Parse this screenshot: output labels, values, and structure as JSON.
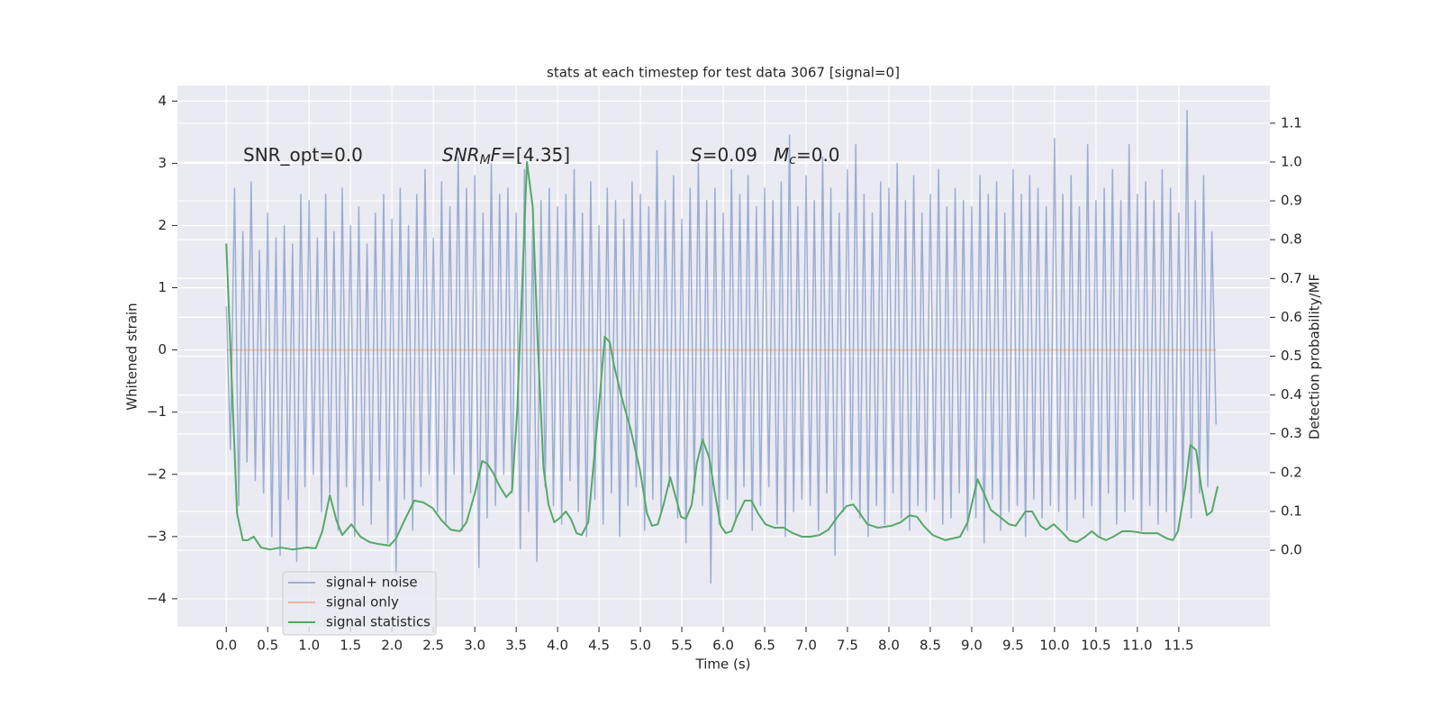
{
  "chart_data": {
    "type": "line",
    "title": "stats at each timestep for test data 3067 [signal=0]",
    "xlabel": "Time (s)",
    "ylabel": "Whitened strain",
    "y2label": "Detection probability/MF",
    "xlim": [
      -0.59,
      12.6
    ],
    "ylim": [
      -4.45,
      4.25
    ],
    "y2lim": [
      -0.197,
      1.197
    ],
    "xticks": [
      {
        "value": 0,
        "label": "0.0"
      },
      0.5,
      {
        "value": 1,
        "label": "1.0"
      },
      1.5,
      {
        "value": 2,
        "label": "2.0"
      },
      2.5,
      {
        "value": 3,
        "label": "3.0"
      },
      3.5,
      {
        "value": 4,
        "label": "4.0"
      },
      4.5,
      {
        "value": 5,
        "label": "5.0"
      },
      5.5,
      {
        "value": 6,
        "label": "6.0"
      },
      6.5,
      {
        "value": 7,
        "label": "7.0"
      },
      7.5,
      {
        "value": 8,
        "label": "8.0"
      },
      8.5,
      {
        "value": 9,
        "label": "9.0"
      },
      9.5,
      {
        "value": 10,
        "label": "10.0"
      },
      10.5,
      {
        "value": 11,
        "label": "11.0"
      },
      11.5
    ],
    "yticks": [
      {
        "value": -4,
        "label": "−4"
      },
      {
        "value": -3,
        "label": "−3"
      },
      {
        "value": -2,
        "label": "−2"
      },
      {
        "value": -1,
        "label": "−1"
      },
      0,
      1,
      2,
      3,
      4
    ],
    "y2ticks": [
      {
        "value": 0,
        "label": "0.0"
      },
      0.1,
      0.2,
      0.3,
      0.4,
      0.5,
      0.6,
      0.7,
      0.8,
      0.9,
      {
        "value": 1,
        "label": "1.0"
      },
      1.1
    ],
    "grid": true,
    "legend": "lower left",
    "annotations": [
      [
        "SNR_opt=0.0"
      ],
      [
        "SNR",
        "M",
        "F",
        "=[4.35]"
      ],
      [
        "S",
        "=0.09",
        "M",
        "c",
        "=0.0"
      ]
    ],
    "series": [
      {
        "name": "signal+ noise",
        "color": "#4c72b0",
        "x": [
          0,
          0.05,
          0.1,
          0.15,
          0.2,
          0.25,
          0.3,
          0.35,
          0.4,
          0.45,
          0.5,
          0.55,
          0.6,
          0.65,
          0.7,
          0.75,
          0.8,
          0.85,
          0.9,
          0.95,
          1,
          1.05,
          1.1,
          1.15,
          1.2,
          1.25,
          1.3,
          1.35,
          1.4,
          1.45,
          1.5,
          1.55,
          1.6,
          1.65,
          1.7,
          1.75,
          1.8,
          1.85,
          1.9,
          1.95,
          2,
          2.05,
          2.1,
          2.15,
          2.2,
          2.25,
          2.3,
          2.35,
          2.4,
          2.45,
          2.5,
          2.55,
          2.6,
          2.65,
          2.7,
          2.75,
          2.8,
          2.85,
          2.9,
          2.95,
          3,
          3.05,
          3.1,
          3.15,
          3.2,
          3.25,
          3.3,
          3.35,
          3.4,
          3.45,
          3.5,
          3.55,
          3.6,
          3.65,
          3.7,
          3.75,
          3.8,
          3.85,
          3.9,
          3.95,
          4,
          4.05,
          4.1,
          4.15,
          4.2,
          4.25,
          4.3,
          4.35,
          4.4,
          4.45,
          4.5,
          4.55,
          4.6,
          4.65,
          4.7,
          4.75,
          4.8,
          4.85,
          4.9,
          4.95,
          5,
          5.05,
          5.1,
          5.15,
          5.2,
          5.25,
          5.3,
          5.35,
          5.4,
          5.45,
          5.5,
          5.55,
          5.6,
          5.65,
          5.7,
          5.75,
          5.8,
          5.85,
          5.9,
          5.95,
          6,
          6.05,
          6.1,
          6.15,
          6.2,
          6.25,
          6.3,
          6.35,
          6.4,
          6.45,
          6.5,
          6.55,
          6.6,
          6.65,
          6.7,
          6.75,
          6.8,
          6.85,
          6.9,
          6.95,
          7,
          7.05,
          7.1,
          7.15,
          7.2,
          7.25,
          7.3,
          7.35,
          7.4,
          7.45,
          7.5,
          7.55,
          7.6,
          7.65,
          7.7,
          7.75,
          7.8,
          7.85,
          7.9,
          7.95,
          8,
          8.05,
          8.1,
          8.15,
          8.2,
          8.25,
          8.3,
          8.35,
          8.4,
          8.45,
          8.5,
          8.55,
          8.6,
          8.65,
          8.7,
          8.75,
          8.8,
          8.85,
          8.9,
          8.95,
          9,
          9.05,
          9.1,
          9.15,
          9.2,
          9.25,
          9.3,
          9.35,
          9.4,
          9.45,
          9.5,
          9.55,
          9.6,
          9.65,
          9.7,
          9.75,
          9.8,
          9.85,
          9.9,
          9.95,
          10,
          10.05,
          10.1,
          10.15,
          10.2,
          10.25,
          10.3,
          10.35,
          10.4,
          10.45,
          10.5,
          10.55,
          10.6,
          10.65,
          10.7,
          10.75,
          10.8,
          10.85,
          10.9,
          10.95,
          11,
          11.05,
          11.1,
          11.15,
          11.2,
          11.25,
          11.3,
          11.35,
          11.4,
          11.45,
          11.5,
          11.55,
          11.6,
          11.65,
          11.7,
          11.75,
          11.8,
          11.85,
          11.9,
          11.95
        ],
        "values": [
          0.7,
          -1.6,
          2.6,
          -2.5,
          1.9,
          -1.8,
          2.7,
          -2.1,
          1.6,
          -2.3,
          2.2,
          -3.0,
          1.8,
          -3.3,
          2.0,
          -2.4,
          1.7,
          -3.4,
          2.5,
          -2.2,
          2.4,
          -2.0,
          1.8,
          -2.6,
          2.5,
          -2.3,
          1.9,
          -2.9,
          2.6,
          -2.2,
          2.0,
          -3.0,
          2.3,
          -2.5,
          1.7,
          -2.8,
          2.2,
          -2.1,
          2.5,
          -3.1,
          2.1,
          -3.6,
          2.6,
          -2.4,
          2.0,
          -2.9,
          2.5,
          -2.2,
          2.9,
          -2.0,
          1.8,
          -2.6,
          2.7,
          -2.8,
          2.3,
          -2.0,
          3.1,
          -2.9,
          2.6,
          -2.3,
          2.8,
          -3.5,
          2.2,
          -2.7,
          3.0,
          -2.5,
          2.5,
          -2.0,
          2.6,
          -2.3,
          2.2,
          -3.2,
          2.9,
          -2.6,
          2.0,
          -3.4,
          2.4,
          -2.2,
          2.6,
          -2.5,
          2.3,
          -2.8,
          2.5,
          -2.1,
          2.9,
          -2.6,
          2.2,
          -3.0,
          2.7,
          -2.4,
          2.0,
          -2.8,
          2.6,
          -2.3,
          2.4,
          -3.0,
          2.1,
          -2.5,
          2.7,
          -2.2,
          2.5,
          -2.9,
          2.3,
          -2.4,
          3.2,
          -2.6,
          2.4,
          -2.2,
          2.8,
          -2.7,
          2.1,
          -3.1,
          2.6,
          -2.3,
          3.0,
          -2.5,
          2.4,
          -3.75,
          2.6,
          -2.8,
          2.2,
          -2.4,
          2.9,
          -2.7,
          2.5,
          -2.2,
          2.8,
          -2.9,
          2.3,
          -2.5,
          2.6,
          -2.2,
          2.4,
          -2.8,
          2.7,
          -3.0,
          3.45,
          -2.6,
          2.3,
          -2.4,
          2.8,
          -2.5,
          2.4,
          -2.9,
          3.1,
          -2.3,
          2.6,
          -3.3,
          2.2,
          -2.6,
          2.9,
          -2.4,
          3.3,
          -2.7,
          2.5,
          -3.0,
          2.2,
          -2.5,
          2.7,
          -2.8,
          2.6,
          -2.3,
          3.0,
          -2.7,
          2.4,
          -2.9,
          2.8,
          -2.5,
          2.2,
          -2.6,
          2.5,
          -2.4,
          2.9,
          -2.8,
          2.3,
          -2.7,
          2.6,
          -2.3,
          2.4,
          -2.9,
          2.3,
          -2.7,
          2.8,
          -3.1,
          2.5,
          -2.4,
          2.7,
          -2.9,
          2.2,
          -2.6,
          2.9,
          -2.5,
          2.5,
          -3.0,
          2.8,
          -2.4,
          2.6,
          -2.7,
          2.3,
          -2.5,
          3.4,
          -2.6,
          2.5,
          -2.9,
          2.8,
          -2.4,
          2.3,
          -2.7,
          3.3,
          -2.5,
          2.4,
          -3.0,
          2.6,
          -2.3,
          2.9,
          -2.8,
          2.4,
          -2.6,
          3.3,
          -2.4,
          2.5,
          -2.9,
          2.7,
          -2.5,
          2.4,
          -2.8,
          2.9,
          -2.6,
          2.6,
          -3.0,
          2.2,
          -2.4,
          3.85,
          -2.7,
          2.4,
          -2.3,
          2.8,
          -2.2,
          1.9,
          -1.2
        ]
      },
      {
        "name": "signal only",
        "color": "#dd8452",
        "x": [
          0,
          11.95
        ],
        "values": [
          0,
          0
        ]
      },
      {
        "name": "signal statistics",
        "color": "#55a868",
        "axis": "y2",
        "x": [
          0,
          0.13,
          0.2,
          0.26,
          0.33,
          0.42,
          0.53,
          0.66,
          0.8,
          0.97,
          1.08,
          1.16,
          1.25,
          1.33,
          1.4,
          1.51,
          1.62,
          1.73,
          1.84,
          1.97,
          2.05,
          2.14,
          2.27,
          2.38,
          2.49,
          2.6,
          2.71,
          2.82,
          2.9,
          3.0,
          3.09,
          3.15,
          3.22,
          3.3,
          3.38,
          3.45,
          3.51,
          3.58,
          3.63,
          3.7,
          3.76,
          3.83,
          3.89,
          3.96,
          4.03,
          4.1,
          4.16,
          4.23,
          4.29,
          4.37,
          4.45,
          4.51,
          4.57,
          4.63,
          4.68,
          4.77,
          4.88,
          4.99,
          5.08,
          5.14,
          5.21,
          5.28,
          5.36,
          5.42,
          5.49,
          5.55,
          5.62,
          5.68,
          5.75,
          5.83,
          5.9,
          5.97,
          6.03,
          6.1,
          6.16,
          6.26,
          6.34,
          6.42,
          6.51,
          6.62,
          6.73,
          6.84,
          6.95,
          7.05,
          7.16,
          7.27,
          7.38,
          7.49,
          7.57,
          7.65,
          7.74,
          7.87,
          8.03,
          8.14,
          8.25,
          8.34,
          8.42,
          8.53,
          8.68,
          8.86,
          8.95,
          9.07,
          9.15,
          9.23,
          9.34,
          9.45,
          9.53,
          9.65,
          9.73,
          9.83,
          9.9,
          9.99,
          10.08,
          10.18,
          10.27,
          10.37,
          10.45,
          10.53,
          10.62,
          10.71,
          10.82,
          10.92,
          11.08,
          11.24,
          11.36,
          11.43,
          11.49,
          11.58,
          11.64,
          11.71,
          11.77,
          11.84,
          11.9,
          11.97
        ],
        "values": [
          0.79,
          0.095,
          0.026,
          0.026,
          0.035,
          0.007,
          0.002,
          0.007,
          0.002,
          0.007,
          0.005,
          0.049,
          0.142,
          0.077,
          0.039,
          0.067,
          0.035,
          0.021,
          0.016,
          0.012,
          0.03,
          0.072,
          0.128,
          0.123,
          0.109,
          0.077,
          0.053,
          0.049,
          0.072,
          0.146,
          0.23,
          0.223,
          0.2,
          0.165,
          0.137,
          0.153,
          0.35,
          0.722,
          1.0,
          0.884,
          0.536,
          0.211,
          0.118,
          0.072,
          0.084,
          0.1,
          0.081,
          0.044,
          0.039,
          0.072,
          0.258,
          0.397,
          0.55,
          0.536,
          0.478,
          0.397,
          0.313,
          0.211,
          0.095,
          0.063,
          0.067,
          0.118,
          0.188,
          0.142,
          0.086,
          0.081,
          0.118,
          0.223,
          0.285,
          0.239,
          0.146,
          0.063,
          0.044,
          0.049,
          0.084,
          0.128,
          0.128,
          0.095,
          0.067,
          0.058,
          0.058,
          0.044,
          0.035,
          0.035,
          0.039,
          0.053,
          0.086,
          0.114,
          0.118,
          0.095,
          0.067,
          0.058,
          0.063,
          0.072,
          0.09,
          0.086,
          0.063,
          0.039,
          0.026,
          0.035,
          0.072,
          0.183,
          0.146,
          0.104,
          0.086,
          0.067,
          0.063,
          0.1,
          0.1,
          0.063,
          0.053,
          0.067,
          0.049,
          0.026,
          0.021,
          0.035,
          0.049,
          0.035,
          0.026,
          0.035,
          0.049,
          0.049,
          0.044,
          0.044,
          0.03,
          0.026,
          0.049,
          0.165,
          0.271,
          0.258,
          0.165,
          0.09,
          0.1,
          0.165
        ]
      }
    ]
  }
}
